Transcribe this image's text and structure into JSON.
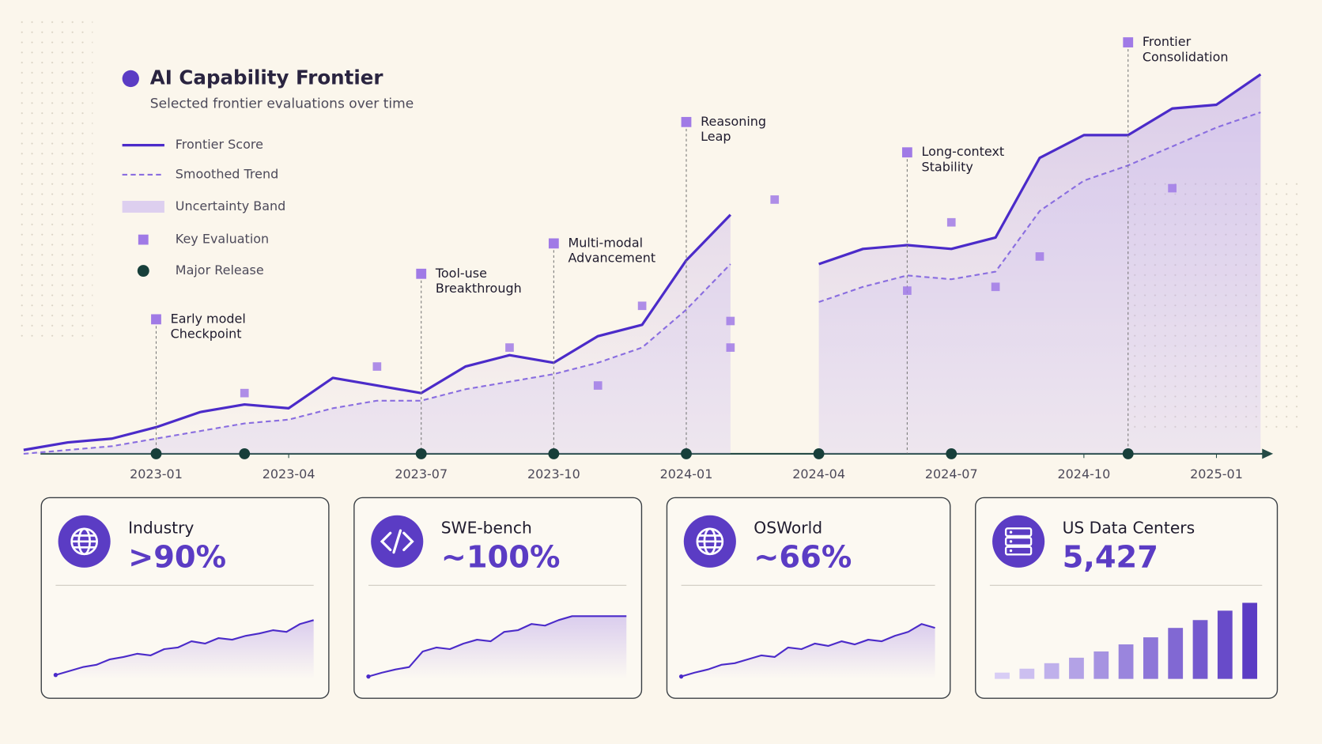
{
  "chart_data": {
    "type": "line",
    "title": "AI Capability Frontier",
    "subtitle": "Selected frontier evaluations over time",
    "x": [
      "2022-10",
      "2022-11",
      "2022-12",
      "2023-01",
      "2023-02",
      "2023-03",
      "2023-04",
      "2023-05",
      "2023-06",
      "2023-07",
      "2023-08",
      "2023-09",
      "2023-10",
      "2023-11",
      "2023-12",
      "2024-01",
      "2024-02",
      "2024-03",
      "2024-04",
      "2024-05",
      "2024-06",
      "2024-07",
      "2024-08",
      "2024-09",
      "2024-10",
      "2024-11",
      "2024-12",
      "2025-01",
      "2025-02"
    ],
    "xticks": [
      "2023-01",
      "2023-04",
      "2023-07",
      "2023-10",
      "2024-01",
      "2024-04",
      "2024-07",
      "2024-10",
      "2025-01"
    ],
    "ylim": [
      0,
      100
    ],
    "series": [
      {
        "name": "Frontier Score",
        "color": "#4b2bc9",
        "values": [
          1,
          3,
          4,
          7,
          11,
          13,
          12,
          20,
          18,
          16,
          23,
          26,
          24,
          31,
          34,
          51,
          63,
          null,
          50,
          54,
          55,
          54,
          57,
          78,
          84,
          84,
          91,
          92,
          100
        ]
      },
      {
        "name": "Smoothed Trend",
        "color": "#8a6ee0",
        "values": [
          0,
          1,
          2,
          4,
          6,
          8,
          9,
          12,
          14,
          14,
          17,
          19,
          21,
          24,
          28,
          38,
          50,
          null,
          40,
          44,
          47,
          46,
          48,
          64,
          72,
          76,
          81,
          86,
          90
        ]
      }
    ],
    "uncertainty_band": {
      "name": "Uncertainty Band",
      "color": "#c9b6f2"
    },
    "key_evaluations": {
      "name": "Key Evaluation",
      "color": "#a07ae6",
      "x": [
        "2023-03",
        "2023-06",
        "2023-09",
        "2023-11",
        "2023-12",
        "2024-02",
        "2024-02",
        "2024-03",
        "2024-06",
        "2024-07",
        "2024-08",
        "2024-09",
        "2024-12"
      ],
      "values": [
        16,
        23,
        28,
        18,
        39,
        35,
        28,
        67,
        43,
        61,
        44,
        52,
        70
      ]
    },
    "major_releases": {
      "name": "Major Release",
      "color": "#173f3a",
      "x": [
        "2023-01",
        "2023-03",
        "2023-07",
        "2023-10",
        "2024-01",
        "2024-04",
        "2024-07",
        "2024-11"
      ]
    },
    "annotations": [
      {
        "x": "2023-01",
        "text": [
          "Early model",
          "Checkpoint"
        ]
      },
      {
        "x": "2023-07",
        "text": [
          "Tool-use",
          "Breakthrough"
        ]
      },
      {
        "x": "2023-10",
        "text": [
          "Multi-modal",
          "Advancement"
        ]
      },
      {
        "x": "2024-01",
        "text": [
          "Reasoning",
          "Leap"
        ]
      },
      {
        "x": "2024-06",
        "text": [
          "Long-context",
          "Stability"
        ]
      },
      {
        "x": "2024-11",
        "text": [
          "Frontier",
          "Consolidation"
        ]
      }
    ]
  },
  "cards": [
    {
      "title": "Industry",
      "stat": ">90%",
      "chart": {
        "type": "line",
        "ylim": [
          0,
          100
        ],
        "values": [
          5,
          10,
          15,
          18,
          25,
          28,
          32,
          30,
          38,
          40,
          48,
          45,
          52,
          50,
          55,
          58,
          62,
          60,
          70,
          75
        ]
      }
    },
    {
      "title": "SWE-bench",
      "stat": "~100%",
      "chart": {
        "type": "line",
        "ylim": [
          0,
          100
        ],
        "values": [
          3,
          8,
          12,
          15,
          35,
          40,
          38,
          45,
          50,
          48,
          60,
          62,
          70,
          68,
          75,
          80,
          80,
          80,
          80,
          80
        ]
      }
    },
    {
      "title": "OSWorld",
      "stat": "~66%",
      "chart": {
        "type": "line",
        "ylim": [
          0,
          100
        ],
        "values": [
          3,
          8,
          12,
          18,
          20,
          25,
          30,
          28,
          40,
          38,
          45,
          42,
          48,
          44,
          50,
          48,
          55,
          60,
          70,
          65
        ]
      }
    },
    {
      "title": "US Data Centers",
      "stat": "5,427",
      "chart": {
        "type": "bar",
        "ylim": [
          0,
          100
        ],
        "values": [
          8,
          13,
          20,
          27,
          35,
          44,
          53,
          65,
          75,
          87,
          97
        ]
      }
    }
  ]
}
